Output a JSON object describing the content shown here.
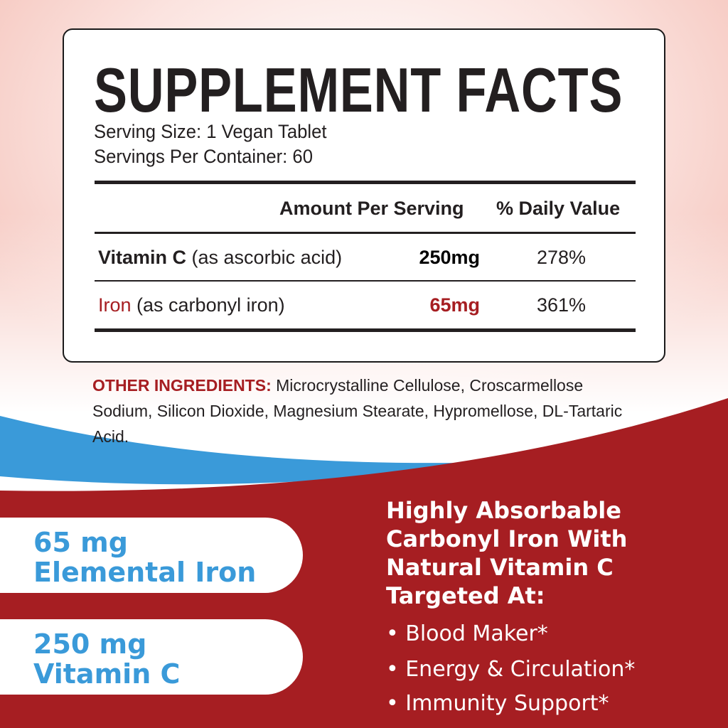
{
  "facts": {
    "title": "SUPPLEMENT FACTS",
    "serving_size": "Serving Size: 1 Vegan Tablet",
    "servings_per_container": "Servings Per Container: 60",
    "header_amount": "Amount Per Serving",
    "header_dv": "% Daily Value",
    "rows": [
      {
        "name": "Vitamin C",
        "detail": " (as ascorbic acid)",
        "amount": "250mg",
        "dv": "278%"
      },
      {
        "name": "Iron",
        "detail": " (as carbonyl iron)",
        "amount": "65mg",
        "dv": "361%"
      }
    ]
  },
  "other": {
    "label": "OTHER INGREDIENTS:",
    "text": " Microcrystalline Cellulose, Croscarmellose Sodium, Silicon Dioxide, Magnesium Stearate, Hypromellose, DL-Tartaric Acid."
  },
  "pills": [
    {
      "line1": "65 mg",
      "line2": "Elemental Iron"
    },
    {
      "line1": "250 mg",
      "line2": "Vitamin C"
    }
  ],
  "pitch": {
    "lines": [
      "Highly Absorbable",
      "Carbonyl Iron With",
      "Natural Vitamin C",
      "Targeted At:"
    ]
  },
  "bullets": [
    "• Blood Maker*",
    "• Energy & Circulation*",
    "• Immunity Support*"
  ],
  "colors": {
    "red": "#a61e22",
    "blue": "#3a9ad9",
    "text": "#231f20"
  }
}
